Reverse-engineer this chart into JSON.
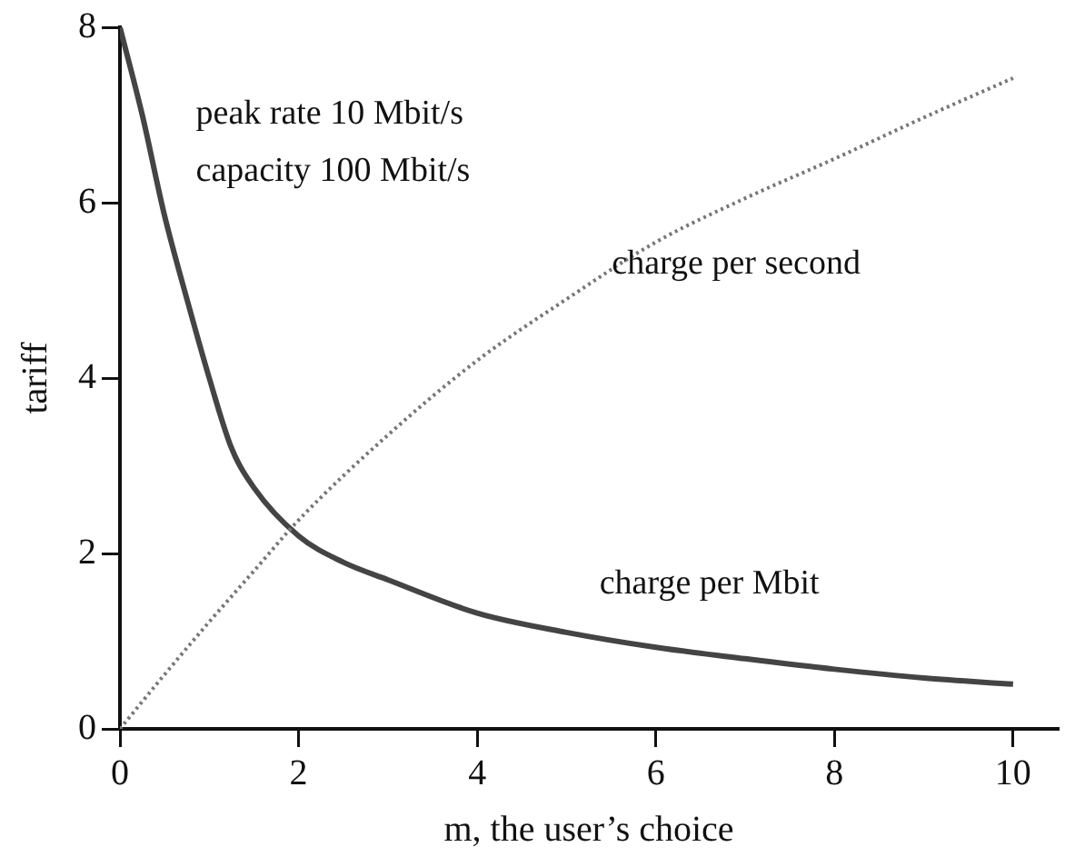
{
  "chart_data": {
    "type": "line",
    "xlabel": "m, the user’s choice",
    "ylabel": "tariff",
    "xlim": [
      0,
      10.5
    ],
    "xticks": [
      0,
      2,
      4,
      6,
      8,
      10
    ],
    "ylim": [
      0,
      8
    ],
    "yticks": [
      0,
      2,
      4,
      6,
      8
    ],
    "grid": false,
    "legend": false,
    "marker": "none",
    "annotations": [
      "peak rate 10 Mbit/s",
      "capacity 100 Mbit/s"
    ],
    "series": [
      {
        "name": "charge per second",
        "color": "#777777",
        "line_style": "dotted",
        "x": [
          0,
          0.5,
          1,
          1.5,
          2,
          3,
          4,
          5,
          6,
          7,
          8,
          9,
          10
        ],
        "values": [
          0,
          0.62,
          1.22,
          1.8,
          2.38,
          3.35,
          4.2,
          4.9,
          5.55,
          6.05,
          6.5,
          6.97,
          7.42
        ]
      },
      {
        "name": "charge per Mbit",
        "color": "#444444",
        "line_style": "solid",
        "x": [
          0,
          0.25,
          0.5,
          0.75,
          1,
          1.25,
          1.5,
          2,
          2.5,
          3,
          4,
          5,
          6,
          7,
          8,
          9,
          10
        ],
        "values": [
          8,
          7,
          5.85,
          4.9,
          4,
          3.2,
          2.75,
          2.2,
          1.9,
          1.7,
          1.32,
          1.1,
          0.93,
          0.8,
          0.68,
          0.58,
          0.51
        ]
      }
    ]
  }
}
